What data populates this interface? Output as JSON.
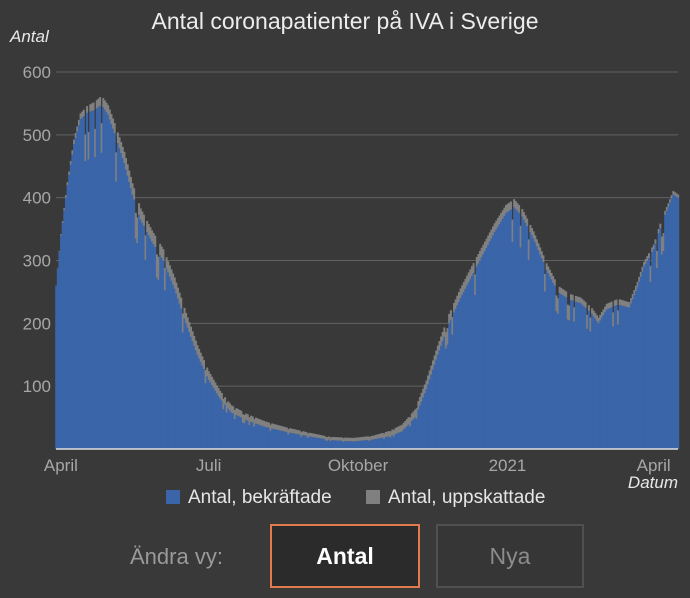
{
  "title": "Antal coronapatienter på IVA i Sverige",
  "chart_data": {
    "type": "bar",
    "title": "Antal coronapatienter på IVA i Sverige",
    "ylabel": "Antal",
    "xlabel": "Datum",
    "ylim": [
      0,
      600
    ],
    "yticks": [
      100,
      200,
      300,
      400,
      500,
      600
    ],
    "xticks": [
      {
        "label": "April",
        "date": "2020-04-01"
      },
      {
        "label": "Juli",
        "date": "2020-07-01"
      },
      {
        "label": "Oktober",
        "date": "2020-10-01"
      },
      {
        "label": "2021",
        "date": "2021-01-01"
      },
      {
        "label": "April",
        "date": "2021-04-01"
      }
    ],
    "x_start": "2020-03-29",
    "x_end": "2021-04-16",
    "grid": true,
    "legend": "bottom",
    "series": [
      {
        "name": "Antal, bekräftade",
        "color": "#3a65a8",
        "anchors": [
          [
            "2020-03-29",
            260
          ],
          [
            "2020-04-01",
            340
          ],
          [
            "2020-04-05",
            420
          ],
          [
            "2020-04-09",
            485
          ],
          [
            "2020-04-13",
            525
          ],
          [
            "2020-04-17",
            535
          ],
          [
            "2020-04-22",
            540
          ],
          [
            "2020-04-26",
            548
          ],
          [
            "2020-04-30",
            532
          ],
          [
            "2020-05-05",
            495
          ],
          [
            "2020-05-10",
            455
          ],
          [
            "2020-05-15",
            405
          ],
          [
            "2020-05-20",
            365
          ],
          [
            "2020-05-27",
            330
          ],
          [
            "2020-06-03",
            300
          ],
          [
            "2020-06-10",
            255
          ],
          [
            "2020-06-17",
            200
          ],
          [
            "2020-06-24",
            150
          ],
          [
            "2020-07-01",
            110
          ],
          [
            "2020-07-08",
            80
          ],
          [
            "2020-07-15",
            58
          ],
          [
            "2020-07-25",
            45
          ],
          [
            "2020-08-05",
            35
          ],
          [
            "2020-08-18",
            27
          ],
          [
            "2020-09-01",
            20
          ],
          [
            "2020-09-15",
            14
          ],
          [
            "2020-09-28",
            12
          ],
          [
            "2020-10-10",
            15
          ],
          [
            "2020-10-20",
            20
          ],
          [
            "2020-10-28",
            28
          ],
          [
            "2020-11-05",
            50
          ],
          [
            "2020-11-12",
            95
          ],
          [
            "2020-11-19",
            150
          ],
          [
            "2020-11-26",
            200
          ],
          [
            "2020-12-03",
            240
          ],
          [
            "2020-12-10",
            275
          ],
          [
            "2020-12-17",
            310
          ],
          [
            "2020-12-24",
            345
          ],
          [
            "2020-12-31",
            375
          ],
          [
            "2021-01-05",
            385
          ],
          [
            "2021-01-10",
            370
          ],
          [
            "2021-01-17",
            335
          ],
          [
            "2021-01-25",
            285
          ],
          [
            "2021-02-01",
            250
          ],
          [
            "2021-02-08",
            238
          ],
          [
            "2021-02-15",
            232
          ],
          [
            "2021-02-22",
            215
          ],
          [
            "2021-02-26",
            200
          ],
          [
            "2021-03-03",
            222
          ],
          [
            "2021-03-10",
            230
          ],
          [
            "2021-03-17",
            225
          ],
          [
            "2021-03-22",
            258
          ],
          [
            "2021-03-26",
            290
          ],
          [
            "2021-04-01",
            318
          ],
          [
            "2021-04-06",
            360
          ],
          [
            "2021-04-10",
            385
          ],
          [
            "2021-04-13",
            405
          ],
          [
            "2021-04-16",
            400
          ]
        ]
      },
      {
        "name": "Antal, uppskattade",
        "color": "#808080",
        "anchors": [
          [
            "2020-03-29",
            0
          ],
          [
            "2020-04-10",
            8
          ],
          [
            "2020-04-25",
            14
          ],
          [
            "2020-05-10",
            18
          ],
          [
            "2020-06-10",
            18
          ],
          [
            "2020-07-10",
            12
          ],
          [
            "2020-08-10",
            8
          ],
          [
            "2020-09-10",
            5
          ],
          [
            "2020-10-10",
            6
          ],
          [
            "2020-11-10",
            14
          ],
          [
            "2020-12-10",
            16
          ],
          [
            "2021-01-10",
            12
          ],
          [
            "2021-02-10",
            9
          ],
          [
            "2021-03-10",
            9
          ],
          [
            "2021-04-05",
            7
          ],
          [
            "2021-04-16",
            5
          ]
        ]
      }
    ]
  },
  "legend": {
    "confirmed": "Antal, bekräftade",
    "estimated": "Antal, uppskattade"
  },
  "controls": {
    "label": "Ändra vy:",
    "antal": "Antal",
    "nya": "Nya"
  }
}
